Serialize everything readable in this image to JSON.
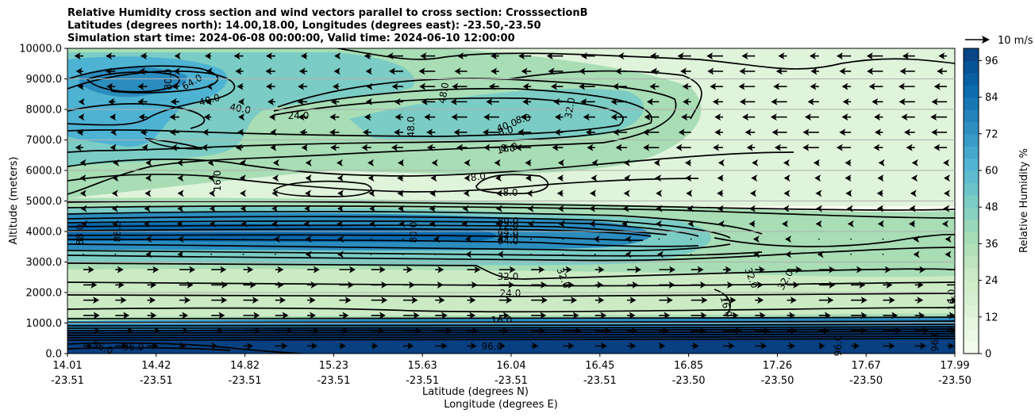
{
  "chart_data": {
    "type": "contour",
    "title_lines": [
      "Relative Humidity cross section and wind vectors parallel to cross section: CrosssectionB",
      "Latitudes (degrees north): 14.00,18.00, Longitudes (degrees east): -23.50,-23.50",
      "Simulation start time: 2024-06-08 00:00:00, Valid time: 2024-06-10 12:00:00"
    ],
    "ylabel": "Altitude (meters)",
    "xlabel_lat": "Latitude (degrees N)",
    "xlabel_lon": "Longitude (degrees E)",
    "ylim": [
      0,
      10000
    ],
    "y_ticks": [
      "0.0",
      "1000.0",
      "2000.0",
      "3000.0",
      "4000.0",
      "5000.0",
      "6000.0",
      "7000.0",
      "8000.0",
      "9000.0",
      "10000.0"
    ],
    "x_ticks_lat": [
      "14.01",
      "14.42",
      "14.82",
      "15.23",
      "15.63",
      "16.04",
      "16.45",
      "16.85",
      "17.26",
      "17.67",
      "17.99"
    ],
    "x_ticks_lon": [
      "-23.51",
      "-23.51",
      "-23.51",
      "-23.51",
      "-23.51",
      "-23.51",
      "-23.51",
      "-23.50",
      "-23.50",
      "-23.50",
      "-23.50"
    ],
    "grid": "horizontal",
    "colorbar": {
      "label": "Relative Humidity %",
      "ticks": [
        "0",
        "12",
        "24",
        "36",
        "48",
        "60",
        "72",
        "84",
        "96"
      ],
      "range": [
        0,
        100
      ],
      "colors": [
        "#f7fcf0",
        "#e0f3db",
        "#ccebc5",
        "#a8ddb5",
        "#7bccc4",
        "#4eb3d3",
        "#2b8cbe",
        "#0868ac",
        "#084081"
      ]
    },
    "quiver_key": "10 m/s",
    "contour_labels": [
      {
        "t": "8.0"
      },
      {
        "t": "8.0"
      },
      {
        "t": "8.0"
      },
      {
        "t": "8.0"
      },
      {
        "t": "8.0"
      },
      {
        "t": "16.0"
      },
      {
        "t": "16.0"
      },
      {
        "t": "16.0"
      },
      {
        "t": "16.0"
      },
      {
        "t": "16.0"
      },
      {
        "t": "24.0"
      },
      {
        "t": "24.0"
      },
      {
        "t": "32.0"
      },
      {
        "t": "32.0"
      },
      {
        "t": "32.0"
      },
      {
        "t": "32.0"
      },
      {
        "t": "32.0"
      },
      {
        "t": "40.0"
      },
      {
        "t": "40.0"
      },
      {
        "t": "40.0"
      },
      {
        "t": "48.0"
      },
      {
        "t": "48.0"
      },
      {
        "t": "64.0"
      },
      {
        "t": "64.0"
      },
      {
        "t": "64.0"
      },
      {
        "t": "72.0"
      },
      {
        "t": "72.0"
      },
      {
        "t": "80.0"
      },
      {
        "t": "80.0"
      },
      {
        "t": "80.0"
      },
      {
        "t": "88.0"
      },
      {
        "t": "88.0"
      },
      {
        "t": "96.0"
      },
      {
        "t": "96.0"
      },
      {
        "t": "96.0"
      },
      {
        "t": "96.0"
      },
      {
        "t": "96.0"
      }
    ]
  }
}
